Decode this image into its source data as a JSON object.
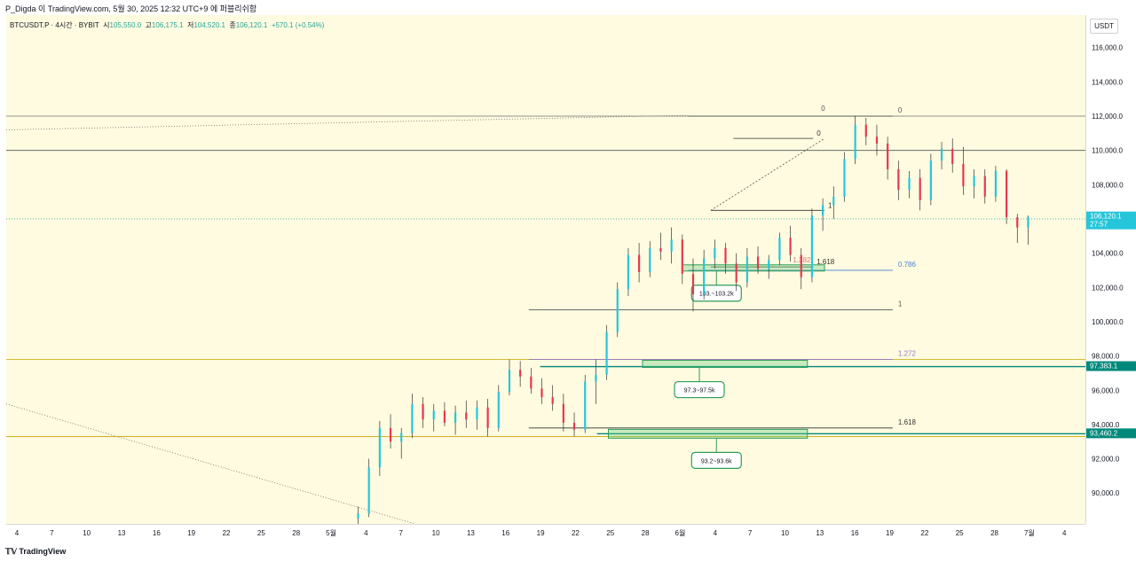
{
  "header": {
    "text": "P_Digda 이 TradingView.com, 5월 30, 2025 12:32 UTC+9 에 퍼블리쉬함"
  },
  "symbol": {
    "name": "BTCUSDT.P · 4시간 · BYBIT",
    "open_label": "시",
    "open": "105,550.0",
    "high_label": "고",
    "high": "106,175.1",
    "low_label": "저",
    "low": "104,520.1",
    "close_label": "종",
    "close": "106,120.1",
    "change": "+570.1 (+0.54%)"
  },
  "currency": "USDT",
  "footer": {
    "brand": "TradingView"
  },
  "chart_data": {
    "type": "candlestick",
    "title": "BTCUSDT.P 4H",
    "ylim": [
      88200,
      117900
    ],
    "y_ticks": [
      "116,000.0",
      "114,000.0",
      "112,000.0",
      "110,000.0",
      "108,000.0",
      "106,000.0",
      "104,000.0",
      "102,000.0",
      "100,000.0",
      "98,000.0",
      "96,000.0",
      "94,000.0",
      "92,000.0",
      "90,000.0"
    ],
    "y_tick_values": [
      116000,
      114000,
      112000,
      110000,
      108000,
      106000,
      104000,
      102000,
      100000,
      98000,
      96000,
      94000,
      92000,
      90000
    ],
    "x_labels": [
      "4",
      "7",
      "10",
      "13",
      "16",
      "19",
      "22",
      "25",
      "28",
      "5월",
      "4",
      "7",
      "10",
      "13",
      "16",
      "19",
      "22",
      "25",
      "28",
      "6월",
      "4",
      "7",
      "10",
      "13",
      "16",
      "19",
      "22",
      "25",
      "28",
      "7월",
      "4"
    ],
    "x_span": [
      0,
      93
    ],
    "price_labels": [
      {
        "value": 106120.1,
        "text": "106,120.1",
        "sub": "27:57",
        "color": "#26c6da"
      },
      {
        "value": 97383.1,
        "text": "97,383.1",
        "color": "#00897b"
      },
      {
        "value": 93460.2,
        "text": "93,460.2",
        "color": "#00897b"
      }
    ],
    "horizontal_lines": [
      {
        "value": 112000,
        "color": "#707070"
      },
      {
        "value": 110000,
        "color": "#555555"
      },
      {
        "value": 97800,
        "color": "#c8a800"
      },
      {
        "value": 93300,
        "color": "#c8a800"
      },
      {
        "value": 106000,
        "color": "#26a69a",
        "dotted": true
      },
      {
        "value": 97383.1,
        "color": "#00897b",
        "from": 46
      },
      {
        "value": 93460.2,
        "color": "#00897b",
        "from": 51
      }
    ],
    "fib_levels": [
      {
        "value": 112000,
        "label": "0",
        "color": "#555555",
        "from": 59,
        "to": 77,
        "label_at": 77
      },
      {
        "value": 103000,
        "label": "0.786",
        "color": "#4a7fd4",
        "from": 59,
        "to": 77,
        "label_at": 77
      },
      {
        "value": 100700,
        "label": "1",
        "color": "#555555",
        "from": 45,
        "to": 77,
        "label_at": 77
      },
      {
        "value": 97800,
        "label": "1.272",
        "color": "#9575cd",
        "from": 45,
        "to": 77,
        "label_at": 77
      },
      {
        "value": 93800,
        "label": "1.618",
        "color": "#333333",
        "from": 45,
        "to": 77,
        "label_at": 77
      }
    ],
    "small_fib": [
      {
        "value": 110700,
        "label": "0",
        "from": 63,
        "to": 70
      },
      {
        "value": 106500,
        "label": "1",
        "from": 61,
        "to": 71
      },
      {
        "value": 103200,
        "label": "1.618",
        "from": 61,
        "to": 70
      },
      {
        "value": 103300,
        "label": "1.382",
        "from": 61,
        "to": 69,
        "color": "#e57373"
      }
    ],
    "zones": [
      {
        "label": "103.~103.2k",
        "from_x": 58.5,
        "to_x": 71,
        "top": 103320,
        "bottom": 102960,
        "callout_x": 61.5
      },
      {
        "label": "97.3~97.5k",
        "from_x": 55,
        "to_x": 69.5,
        "top": 97750,
        "bottom": 97330,
        "callout_x": 60
      },
      {
        "label": "93.2~93.6k",
        "from_x": 52,
        "to_x": 69.5,
        "top": 93720,
        "bottom": 93200,
        "callout_x": 61.5
      }
    ],
    "candles": [
      {
        "o": 88500,
        "h": 89200,
        "l": 88200,
        "c": 88800
      },
      {
        "o": 88800,
        "h": 92000,
        "l": 88600,
        "c": 91500
      },
      {
        "o": 91500,
        "h": 94200,
        "l": 91000,
        "c": 93800
      },
      {
        "o": 93800,
        "h": 94600,
        "l": 92600,
        "c": 93000
      },
      {
        "o": 93000,
        "h": 93800,
        "l": 92000,
        "c": 93500
      },
      {
        "o": 93500,
        "h": 95800,
        "l": 93200,
        "c": 95200
      },
      {
        "o": 95200,
        "h": 95600,
        "l": 93800,
        "c": 94300
      },
      {
        "o": 94300,
        "h": 95200,
        "l": 93600,
        "c": 94800
      },
      {
        "o": 94800,
        "h": 95300,
        "l": 93900,
        "c": 94100
      },
      {
        "o": 94100,
        "h": 95100,
        "l": 93400,
        "c": 94700
      },
      {
        "o": 94700,
        "h": 95400,
        "l": 93800,
        "c": 94300
      },
      {
        "o": 94300,
        "h": 95400,
        "l": 93700,
        "c": 95000
      },
      {
        "o": 95000,
        "h": 95500,
        "l": 93300,
        "c": 93800
      },
      {
        "o": 93800,
        "h": 96300,
        "l": 93600,
        "c": 95900
      },
      {
        "o": 95900,
        "h": 97800,
        "l": 95700,
        "c": 97200
      },
      {
        "o": 97200,
        "h": 97700,
        "l": 96200,
        "c": 96800
      },
      {
        "o": 96800,
        "h": 97300,
        "l": 95800,
        "c": 96100
      },
      {
        "o": 96100,
        "h": 96700,
        "l": 95200,
        "c": 95600
      },
      {
        "o": 95600,
        "h": 96300,
        "l": 94800,
        "c": 95200
      },
      {
        "o": 95200,
        "h": 95800,
        "l": 93600,
        "c": 94100
      },
      {
        "o": 94100,
        "h": 94700,
        "l": 93300,
        "c": 93700
      },
      {
        "o": 93700,
        "h": 96900,
        "l": 93500,
        "c": 96500
      },
      {
        "o": 96500,
        "h": 97800,
        "l": 95200,
        "c": 96900
      },
      {
        "o": 96900,
        "h": 99800,
        "l": 96600,
        "c": 99400
      },
      {
        "o": 99400,
        "h": 102300,
        "l": 99100,
        "c": 101900
      },
      {
        "o": 101900,
        "h": 104300,
        "l": 101500,
        "c": 103900
      },
      {
        "o": 103900,
        "h": 104600,
        "l": 102300,
        "c": 102900
      },
      {
        "o": 102900,
        "h": 104700,
        "l": 102600,
        "c": 104300
      },
      {
        "o": 104300,
        "h": 105200,
        "l": 103600,
        "c": 104100
      },
      {
        "o": 104100,
        "h": 105500,
        "l": 103400,
        "c": 104800
      },
      {
        "o": 104800,
        "h": 105100,
        "l": 102200,
        "c": 102800
      },
      {
        "o": 102800,
        "h": 103700,
        "l": 100600,
        "c": 101600
      },
      {
        "o": 101600,
        "h": 104200,
        "l": 101300,
        "c": 103700
      },
      {
        "o": 103700,
        "h": 104800,
        "l": 103100,
        "c": 104300
      },
      {
        "o": 104300,
        "h": 104600,
        "l": 102800,
        "c": 103400
      },
      {
        "o": 103400,
        "h": 104000,
        "l": 101800,
        "c": 102300
      },
      {
        "o": 102300,
        "h": 104300,
        "l": 102000,
        "c": 103800
      },
      {
        "o": 103800,
        "h": 104400,
        "l": 102800,
        "c": 103100
      },
      {
        "o": 103100,
        "h": 103900,
        "l": 102500,
        "c": 103600
      },
      {
        "o": 103600,
        "h": 105200,
        "l": 103300,
        "c": 104900
      },
      {
        "o": 104900,
        "h": 105600,
        "l": 103500,
        "c": 103900
      },
      {
        "o": 103900,
        "h": 104300,
        "l": 101900,
        "c": 102600
      },
      {
        "o": 102600,
        "h": 106600,
        "l": 102300,
        "c": 106200
      },
      {
        "o": 106200,
        "h": 107200,
        "l": 105300,
        "c": 106800
      },
      {
        "o": 106800,
        "h": 107900,
        "l": 106000,
        "c": 107300
      },
      {
        "o": 107300,
        "h": 109900,
        "l": 107000,
        "c": 109500
      },
      {
        "o": 109500,
        "h": 112000,
        "l": 109200,
        "c": 111500
      },
      {
        "o": 111500,
        "h": 111900,
        "l": 110300,
        "c": 110800
      },
      {
        "o": 110800,
        "h": 111500,
        "l": 109700,
        "c": 110400
      },
      {
        "o": 110400,
        "h": 110800,
        "l": 108300,
        "c": 108900
      },
      {
        "o": 108900,
        "h": 109400,
        "l": 107100,
        "c": 107700
      },
      {
        "o": 107700,
        "h": 108800,
        "l": 107200,
        "c": 108400
      },
      {
        "o": 108400,
        "h": 108900,
        "l": 106500,
        "c": 107100
      },
      {
        "o": 107100,
        "h": 109800,
        "l": 106800,
        "c": 109400
      },
      {
        "o": 109400,
        "h": 110500,
        "l": 108900,
        "c": 110100
      },
      {
        "o": 110100,
        "h": 110700,
        "l": 108700,
        "c": 109200
      },
      {
        "o": 109200,
        "h": 110200,
        "l": 107400,
        "c": 107900
      },
      {
        "o": 107900,
        "h": 108900,
        "l": 107200,
        "c": 108500
      },
      {
        "o": 108500,
        "h": 108900,
        "l": 106900,
        "c": 107300
      },
      {
        "o": 107300,
        "h": 109100,
        "l": 107000,
        "c": 108800
      },
      {
        "o": 108800,
        "h": 108900,
        "l": 105700,
        "c": 106100
      },
      {
        "o": 106100,
        "h": 106300,
        "l": 104600,
        "c": 105500
      },
      {
        "o": 105500,
        "h": 106200,
        "l": 104500,
        "c": 106120
      }
    ]
  }
}
